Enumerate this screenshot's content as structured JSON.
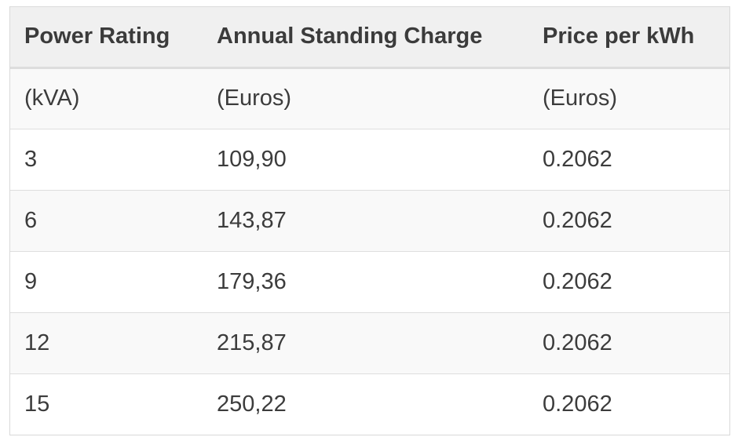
{
  "table": {
    "headers": [
      "Power Rating",
      "Annual Standing Charge",
      "Price per kWh"
    ],
    "rows": [
      [
        "(kVA)",
        "(Euros)",
        "(Euros)"
      ],
      [
        "3",
        "109,90",
        "0.2062"
      ],
      [
        "6",
        "143,87",
        "0.2062"
      ],
      [
        "9",
        "179,36",
        "0.2062"
      ],
      [
        "12",
        "215,87",
        "0.2062"
      ],
      [
        "15",
        "250,22",
        "0.2062"
      ]
    ]
  }
}
